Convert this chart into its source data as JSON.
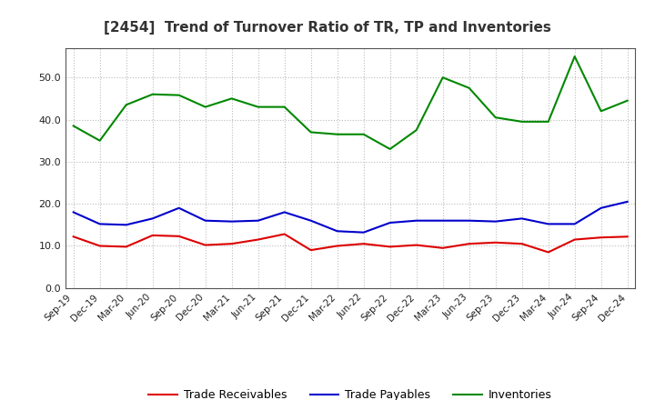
{
  "title": "[2454]  Trend of Turnover Ratio of TR, TP and Inventories",
  "x_labels": [
    "Sep-19",
    "Dec-19",
    "Mar-20",
    "Jun-20",
    "Sep-20",
    "Dec-20",
    "Mar-21",
    "Jun-21",
    "Sep-21",
    "Dec-21",
    "Mar-22",
    "Jun-22",
    "Sep-22",
    "Dec-22",
    "Mar-23",
    "Jun-23",
    "Sep-23",
    "Dec-23",
    "Mar-24",
    "Jun-24",
    "Sep-24",
    "Dec-24"
  ],
  "trade_receivables": [
    12.2,
    10.0,
    9.8,
    12.5,
    12.3,
    10.2,
    10.5,
    11.5,
    12.8,
    9.0,
    10.0,
    10.5,
    9.8,
    10.2,
    9.5,
    10.5,
    10.8,
    10.5,
    8.5,
    11.5,
    12.0,
    12.2
  ],
  "trade_payables": [
    18.0,
    15.2,
    15.0,
    16.5,
    19.0,
    16.0,
    15.8,
    16.0,
    18.0,
    16.0,
    13.5,
    13.2,
    15.5,
    16.0,
    16.0,
    16.0,
    15.8,
    16.5,
    15.2,
    15.2,
    19.0,
    20.5
  ],
  "inventories": [
    38.5,
    35.0,
    43.5,
    46.0,
    45.8,
    43.0,
    45.0,
    43.0,
    43.0,
    37.0,
    36.5,
    36.5,
    33.0,
    37.5,
    50.0,
    47.5,
    40.5,
    39.5,
    39.5,
    55.0,
    42.0,
    44.5
  ],
  "tr_color": "#dd0000",
  "tp_color": "#0000cc",
  "inv_color": "#008800",
  "ylim": [
    0.0,
    57.0
  ],
  "yticks": [
    0.0,
    10.0,
    20.0,
    30.0,
    40.0,
    50.0
  ],
  "background_color": "#ffffff",
  "grid_color": "#bbbbbb",
  "title_color": "#333333",
  "legend_labels": [
    "Trade Receivables",
    "Trade Payables",
    "Inventories"
  ]
}
